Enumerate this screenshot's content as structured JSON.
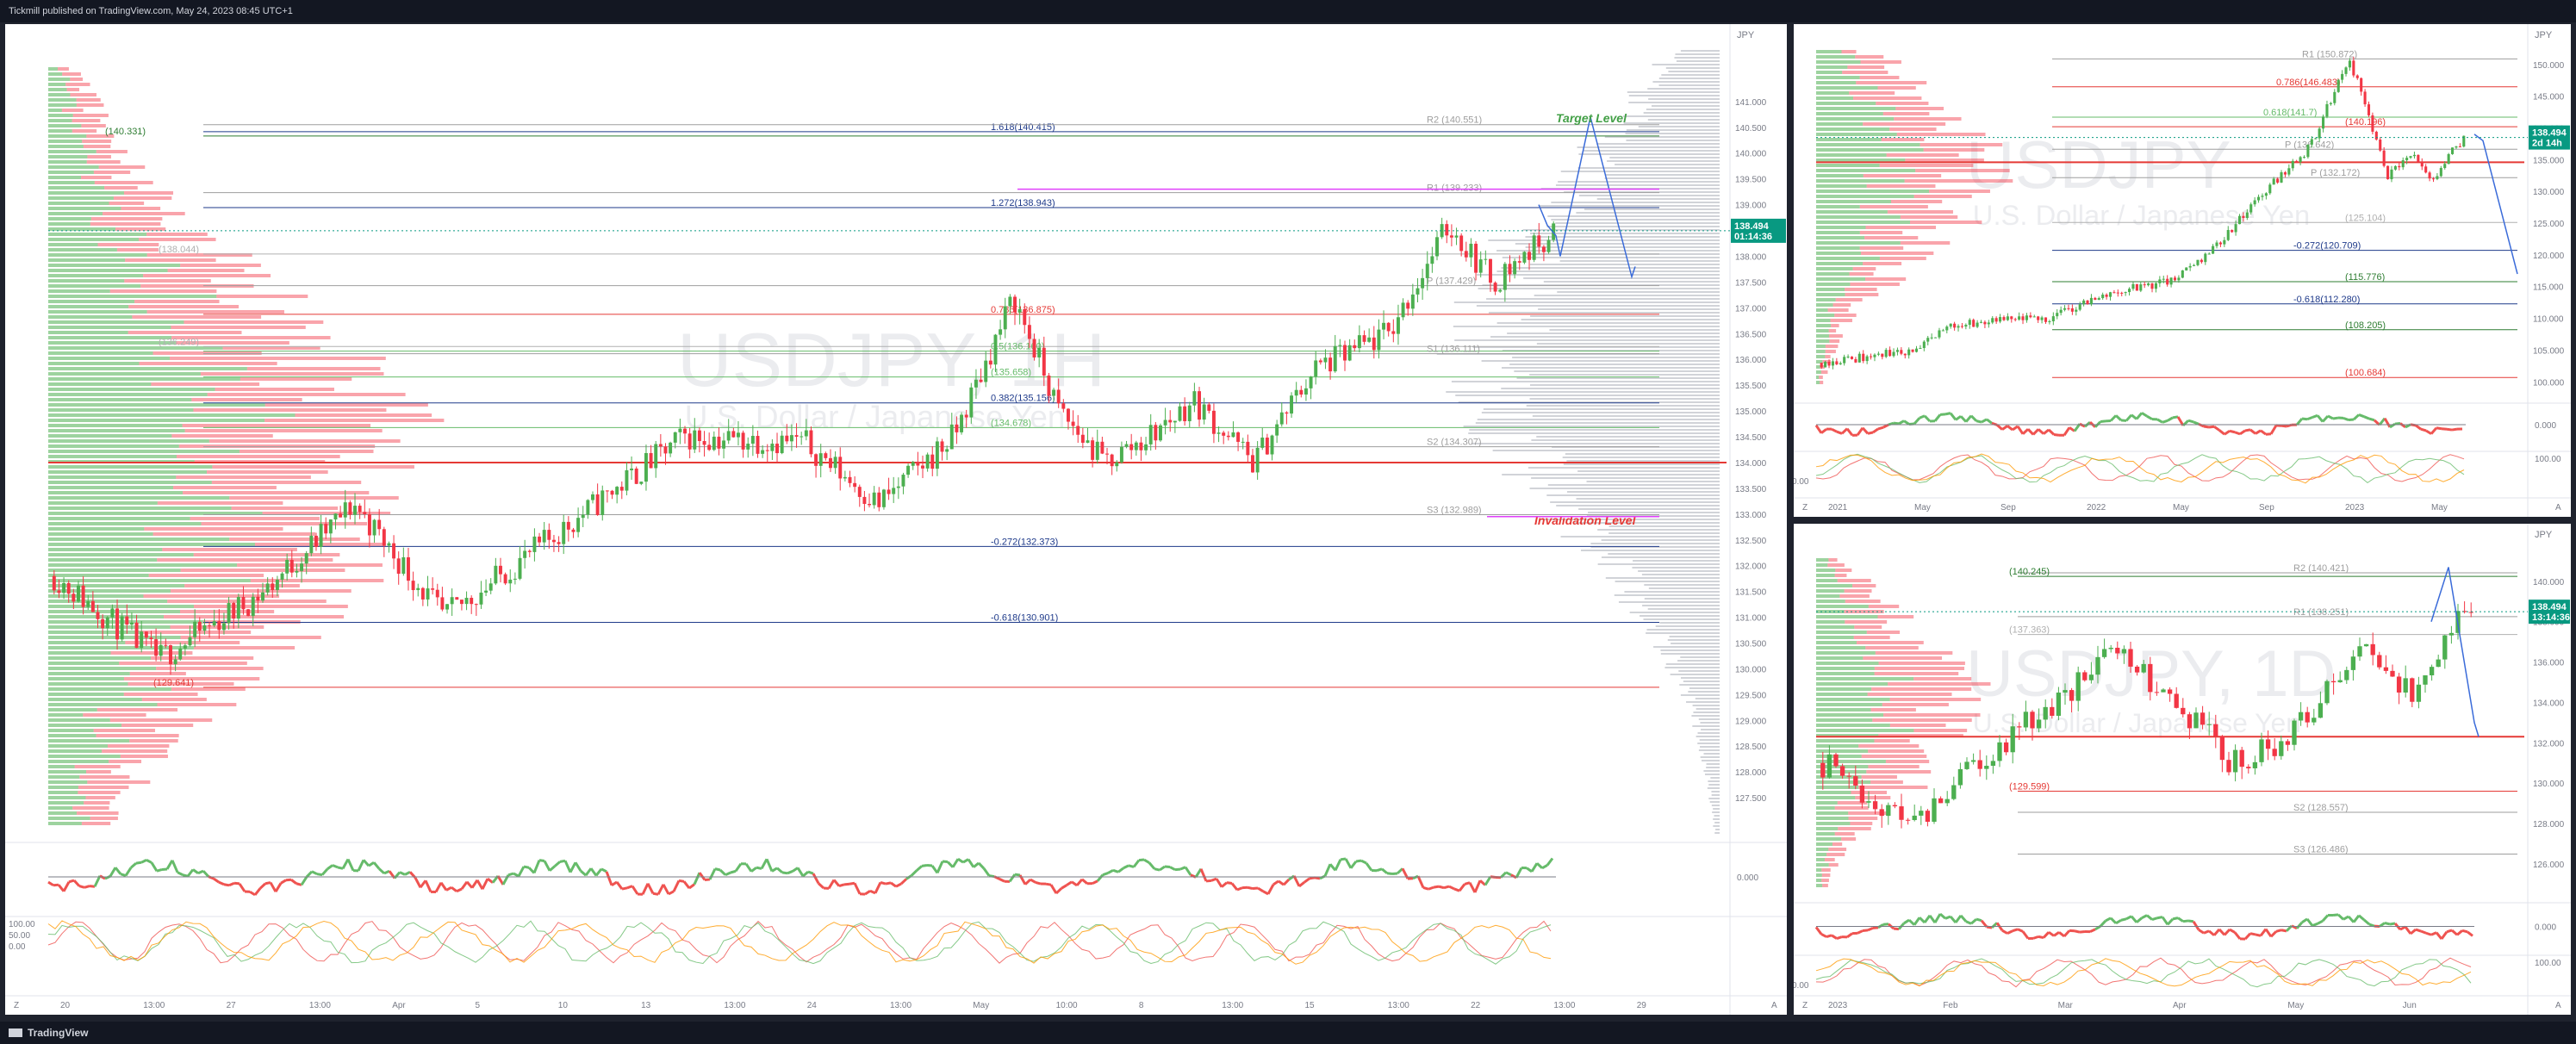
{
  "header": {
    "published_text": "Tickmill published on TradingView.com, May 24, 2023 08:45 UTC+1"
  },
  "footer": {
    "brand": "TradingView"
  },
  "colors": {
    "up": "#4caf50",
    "down": "#f23645",
    "bg": "#1e222d",
    "panel": "#ffffff"
  },
  "main": {
    "symbol_wm": "USDJPY, 1H",
    "subtitle_wm": "U.S. Dollar / Japanese Yen",
    "currency": "JPY",
    "price": "138.494",
    "countdown": "01:14:36",
    "target_note": "Target Level",
    "invalid_note": "Invalidation Level",
    "osc_zero": "0.000",
    "osc_scale": [
      "100.00",
      "50.00",
      "0.00"
    ],
    "corner_left": "Z",
    "corner_right": "A"
  },
  "topright": {
    "symbol_wm": "USDJPY",
    "subtitle_wm": "U.S. Dollar / Japanese Yen",
    "currency": "JPY",
    "price": "138.494",
    "countdown": "2d 14h",
    "osc_zero": "0.000",
    "osc_hi": "100.00",
    "osc_lo": "0.00",
    "corner_left": "Z",
    "corner_right": "A"
  },
  "bottomright": {
    "symbol_wm": "USDJPY, 1D",
    "subtitle_wm": "U.S. Dollar / Japanese Yen",
    "currency": "JPY",
    "price": "138.494",
    "countdown": "13:14:36",
    "osc_zero": "0.000",
    "osc_hi": "100.00",
    "osc_lo": "0.00",
    "corner_left": "Z",
    "corner_right": "A"
  },
  "chart_data": [
    {
      "type": "candlestick",
      "title": "USDJPY, 1H",
      "subtitle": "U.S. Dollar / Japanese Yen",
      "ylim": [
        126.8,
        142.0
      ],
      "y_ticks": [
        "141.000",
        "140.500",
        "140.000",
        "139.500",
        "139.000",
        "138.500",
        "138.000",
        "137.500",
        "137.000",
        "136.500",
        "136.000",
        "135.500",
        "135.000",
        "134.500",
        "134.000",
        "133.500",
        "133.000",
        "132.500",
        "132.000",
        "131.500",
        "131.000",
        "130.500",
        "130.000",
        "129.500",
        "129.000",
        "128.500",
        "128.000",
        "127.500"
      ],
      "x_ticks": [
        "20",
        "13:00",
        "27",
        "13:00",
        "Apr",
        "5",
        "10",
        "13",
        "13:00",
        "24",
        "13:00",
        "May",
        "10:00",
        "8",
        "13:00",
        "15",
        "13:00",
        "22",
        "13:00",
        "29"
      ],
      "levels": [
        {
          "label": "(140.331)",
          "value": 140.331,
          "color": "#2e7d32"
        },
        {
          "label": "1.618(140.415)",
          "value": 140.415,
          "color": "#1e3a8a"
        },
        {
          "label": "R2 (140.551)",
          "value": 140.551,
          "color": "#9e9e9e"
        },
        {
          "label": "1.272(138.943)",
          "value": 138.943,
          "color": "#1e3a8a"
        },
        {
          "label": "R1 (139.233)",
          "value": 139.233,
          "color": "#9e9e9e"
        },
        {
          "label": "(138.044)",
          "value": 138.044,
          "color": "#b0b0b0"
        },
        {
          "label": "0.786(136.875)",
          "value": 136.875,
          "color": "#e53935"
        },
        {
          "label": "P (137.429)",
          "value": 137.429,
          "color": "#9e9e9e"
        },
        {
          "label": "(136.249)",
          "value": 136.249,
          "color": "#b0b0b0"
        },
        {
          "label": "0.5(136.160)",
          "value": 136.16,
          "color": "#66bb6a"
        },
        {
          "label": "S1 (136.111)",
          "value": 136.111,
          "color": "#9e9e9e"
        },
        {
          "label": "(135.658)",
          "value": 135.658,
          "color": "#66bb6a"
        },
        {
          "label": "0.382(135.156)",
          "value": 135.156,
          "color": "#1e3a8a"
        },
        {
          "label": "(134.678)",
          "value": 134.678,
          "color": "#66bb6a"
        },
        {
          "label": "S2 (134.307)",
          "value": 134.307,
          "color": "#9e9e9e"
        },
        {
          "label": "S3 (132.989)",
          "value": 132.989,
          "color": "#9e9e9e"
        },
        {
          "label": "-0.272(132.373)",
          "value": 132.373,
          "color": "#1e3a8a"
        },
        {
          "label": "-0.618(130.901)",
          "value": 130.901,
          "color": "#1e3a8a"
        },
        {
          "label": "(129.641)",
          "value": 129.641,
          "color": "#e53935"
        }
      ],
      "last_price": 138.494
    },
    {
      "type": "candlestick",
      "title": "USDJPY",
      "subtitle": "U.S. Dollar / Japanese Yen",
      "ylim": [
        98,
        155
      ],
      "y_ticks": [
        "150.000",
        "145.000",
        "140.000",
        "135.000",
        "130.000",
        "125.000",
        "120.000",
        "115.000",
        "110.000",
        "105.000",
        "100.000"
      ],
      "x_ticks": [
        "2021",
        "May",
        "Sep",
        "2022",
        "May",
        "Sep",
        "2023",
        "May"
      ],
      "levels": [
        {
          "label": "R1 (150.872)",
          "value": 150.872,
          "color": "#9e9e9e"
        },
        {
          "label": "0.786(146.483)",
          "value": 146.483,
          "color": "#e53935"
        },
        {
          "label": "(140.196)",
          "value": 140.196,
          "color": "#e53935"
        },
        {
          "label": "0.618(141.7)",
          "value": 141.7,
          "color": "#66bb6a"
        },
        {
          "label": "P (136.642)",
          "value": 136.642,
          "color": "#9e9e9e"
        },
        {
          "label": "P (132.172)",
          "value": 132.172,
          "color": "#9e9e9e"
        },
        {
          "label": "(125.104)",
          "value": 125.104,
          "color": "#b0b0b0"
        },
        {
          "label": "-0.272(120.709)",
          "value": 120.709,
          "color": "#1e3a8a"
        },
        {
          "label": "(115.776)",
          "value": 115.776,
          "color": "#2e7d32"
        },
        {
          "label": "-0.618(112.280)",
          "value": 112.28,
          "color": "#1e3a8a"
        },
        {
          "label": "(108.205)",
          "value": 108.205,
          "color": "#2e7d32"
        },
        {
          "label": "(100.684)",
          "value": 100.684,
          "color": "#e53935"
        }
      ],
      "last_price": 138.494
    },
    {
      "type": "candlestick",
      "title": "USDJPY, 1D",
      "subtitle": "U.S. Dollar / Japanese Yen",
      "ylim": [
        124.5,
        142.0
      ],
      "y_ticks": [
        "140.000",
        "138.000",
        "136.000",
        "134.000",
        "132.000",
        "130.000",
        "128.000",
        "126.000"
      ],
      "x_ticks": [
        "2023",
        "Feb",
        "Mar",
        "Apr",
        "May",
        "Jun"
      ],
      "levels": [
        {
          "label": "R2 (140.421)",
          "value": 140.421,
          "color": "#9e9e9e"
        },
        {
          "label": "(140.245)",
          "value": 140.245,
          "color": "#2e7d32"
        },
        {
          "label": "(137.363)",
          "value": 137.363,
          "color": "#b0b0b0"
        },
        {
          "label": "R1 (138.251)",
          "value": 138.251,
          "color": "#9e9e9e"
        },
        {
          "label": "(129.599)",
          "value": 129.599,
          "color": "#e53935"
        },
        {
          "label": "S2 (128.557)",
          "value": 128.557,
          "color": "#9e9e9e"
        },
        {
          "label": "S3 (126.486)",
          "value": 126.486,
          "color": "#9e9e9e"
        }
      ],
      "last_price": 138.494
    }
  ]
}
